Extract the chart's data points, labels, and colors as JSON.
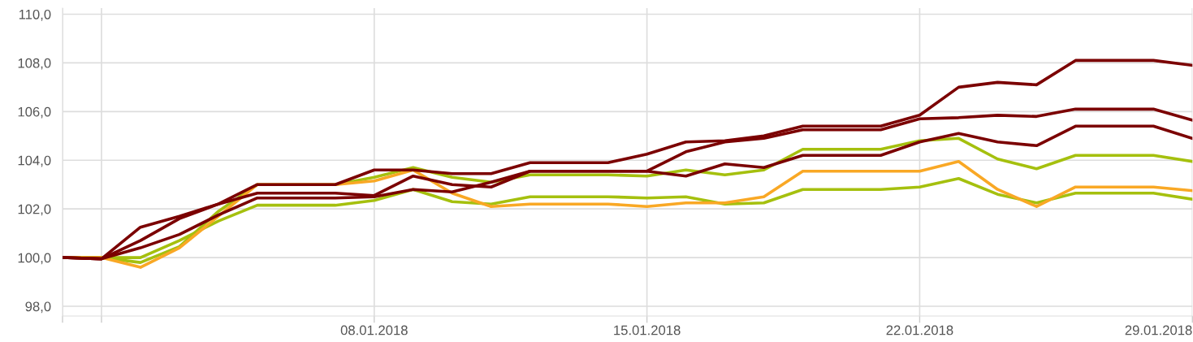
{
  "chart_data": {
    "type": "line",
    "x": [
      "2017-12-31",
      "2018-01-01",
      "2018-01-02",
      "2018-01-03",
      "2018-01-04",
      "2018-01-05",
      "2018-01-06",
      "2018-01-07",
      "2018-01-08",
      "2018-01-09",
      "2018-01-10",
      "2018-01-11",
      "2018-01-12",
      "2018-01-13",
      "2018-01-14",
      "2018-01-15",
      "2018-01-16",
      "2018-01-17",
      "2018-01-18",
      "2018-01-19",
      "2018-01-20",
      "2018-01-21",
      "2018-01-22",
      "2018-01-23",
      "2018-01-24",
      "2018-01-25",
      "2018-01-26",
      "2018-01-27",
      "2018-01-28",
      "2018-01-29"
    ],
    "series": [
      {
        "color": "#a5c00e",
        "values": [
          100.0,
          100.0,
          99.8,
          100.45,
          101.9,
          103.0,
          103.0,
          103.0,
          103.3,
          103.7,
          103.3,
          103.1,
          103.4,
          103.4,
          103.4,
          103.35,
          103.6,
          103.4,
          103.6,
          104.45,
          104.45,
          104.45,
          104.8,
          104.9,
          104.05,
          103.65,
          104.2,
          104.2,
          104.2,
          103.95
        ]
      },
      {
        "color": "#a5c00e",
        "values": [
          100.0,
          100.0,
          100.0,
          100.7,
          101.5,
          102.15,
          102.15,
          102.15,
          102.35,
          102.8,
          102.3,
          102.2,
          102.5,
          102.5,
          102.5,
          102.45,
          102.5,
          102.2,
          102.25,
          102.8,
          102.8,
          102.8,
          102.9,
          103.25,
          102.6,
          102.25,
          102.65,
          102.65,
          102.65,
          102.4
        ]
      },
      {
        "color": "#f9a825",
        "values": [
          100.0,
          100.0,
          99.6,
          100.4,
          101.7,
          103.0,
          103.0,
          103.0,
          103.15,
          103.6,
          102.65,
          102.1,
          102.2,
          102.2,
          102.2,
          102.1,
          102.25,
          102.25,
          102.5,
          103.55,
          103.55,
          103.55,
          103.55,
          103.95,
          102.8,
          102.1,
          102.9,
          102.9,
          102.9,
          102.75
        ]
      },
      {
        "color": "#7b0000",
        "values": [
          100.0,
          99.95,
          101.25,
          101.7,
          102.2,
          103.0,
          103.0,
          103.0,
          103.6,
          103.6,
          103.45,
          103.45,
          103.9,
          103.9,
          103.9,
          104.25,
          104.75,
          104.8,
          105.0,
          105.4,
          105.4,
          105.4,
          105.85,
          107.0,
          107.2,
          107.1,
          108.1,
          108.1,
          108.1,
          107.9
        ]
      },
      {
        "color": "#7b0000",
        "values": [
          100.0,
          99.95,
          100.7,
          101.6,
          102.2,
          102.65,
          102.65,
          102.65,
          102.55,
          103.35,
          103.0,
          102.9,
          103.55,
          103.55,
          103.55,
          103.55,
          104.35,
          104.75,
          104.9,
          105.25,
          105.25,
          105.25,
          105.7,
          105.75,
          105.85,
          105.8,
          106.1,
          106.1,
          106.1,
          105.65
        ]
      },
      {
        "color": "#7b0000",
        "values": [
          100.0,
          99.95,
          100.4,
          100.95,
          101.75,
          102.45,
          102.45,
          102.45,
          102.5,
          102.8,
          102.7,
          103.1,
          103.55,
          103.55,
          103.55,
          103.55,
          103.35,
          103.85,
          103.7,
          104.2,
          104.2,
          104.2,
          104.75,
          105.1,
          104.75,
          104.6,
          105.4,
          105.4,
          105.4,
          104.9
        ]
      }
    ],
    "xlim": [
      "2017-12-31",
      "2018-01-29"
    ],
    "xticks": [
      {
        "value": "2017-12-31",
        "label": null
      },
      {
        "value": "2018-01-01",
        "label": null
      },
      {
        "value": "2018-01-08",
        "label": "08.01.2018"
      },
      {
        "value": "2018-01-15",
        "label": "15.01.2018"
      },
      {
        "value": "2018-01-22",
        "label": "22.01.2018"
      },
      {
        "value": "2018-01-29",
        "label": "29.01.2018"
      }
    ],
    "ylim": [
      97.6,
      110.25
    ],
    "yticks": [
      {
        "value": 98,
        "label": "98,0"
      },
      {
        "value": 100,
        "label": "100,0"
      },
      {
        "value": 102,
        "label": "102,0"
      },
      {
        "value": 104,
        "label": "104,0"
      },
      {
        "value": 106,
        "label": "106,0"
      },
      {
        "value": 108,
        "label": "108,0"
      },
      {
        "value": 110,
        "label": "110,0"
      }
    ],
    "grid": true,
    "marker": "none",
    "line_style": "solid"
  }
}
